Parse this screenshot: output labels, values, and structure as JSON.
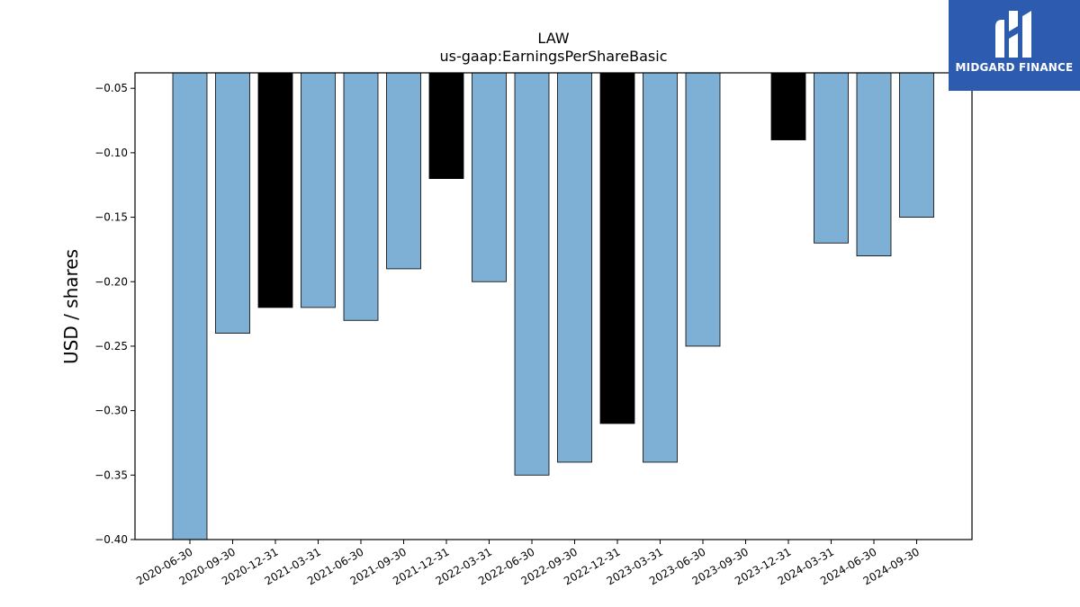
{
  "chart_data": {
    "type": "bar",
    "title": "LAW",
    "subtitle": "us-gaap:EarningsPerShareBasic",
    "ylabel": "USD / shares",
    "xlabel": "",
    "ylim": [
      -0.4,
      -0.038
    ],
    "yticks": [
      -0.05,
      -0.1,
      -0.15,
      -0.2,
      -0.25,
      -0.3,
      -0.35,
      -0.4
    ],
    "categories": [
      "2020-06-30",
      "2020-09-30",
      "2020-12-31",
      "2021-03-31",
      "2021-06-30",
      "2021-09-30",
      "2021-12-31",
      "2022-03-31",
      "2022-06-30",
      "2022-09-30",
      "2022-12-31",
      "2023-03-31",
      "2023-06-30",
      "2023-09-30",
      "2023-12-31",
      "2024-03-31",
      "2024-06-30",
      "2024-09-30"
    ],
    "values": [
      -0.4,
      -0.24,
      -0.22,
      -0.22,
      -0.23,
      -0.19,
      -0.12,
      -0.2,
      -0.35,
      -0.34,
      -0.31,
      -0.34,
      -0.25,
      null,
      -0.09,
      -0.17,
      -0.18,
      -0.15
    ],
    "highlight": [
      false,
      false,
      true,
      false,
      false,
      false,
      true,
      false,
      false,
      false,
      true,
      false,
      false,
      false,
      true,
      false,
      false,
      false
    ],
    "colors": {
      "bar": "#7eafd4",
      "highlight": "#000000",
      "edge": "#000000"
    },
    "grid": false,
    "legend": "none"
  },
  "logo": {
    "text": "MIDGARD FINANCE",
    "background": "#2d5bb0"
  }
}
